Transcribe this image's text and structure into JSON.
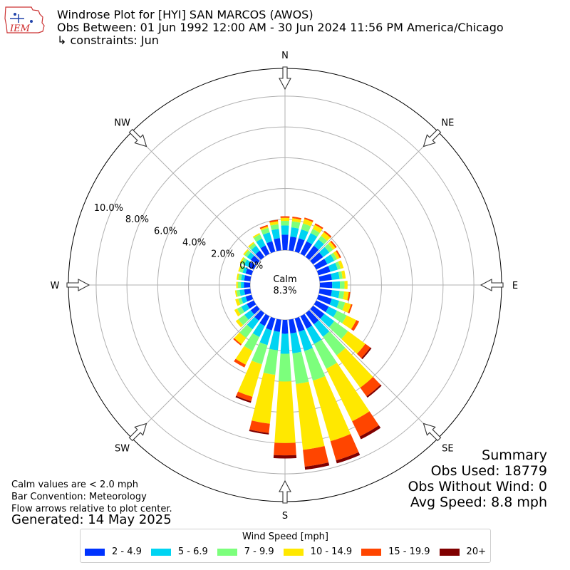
{
  "header": {
    "title": "Windrose Plot for [HYI] SAN MARCOS (AWOS)",
    "obs_between": "Obs Between: 01 Jun 1992 12:00 AM - 30 Jun 2024 11:56 PM America/Chicago",
    "constraints": "↳ constraints: Jun",
    "logo_text": "IEM"
  },
  "chart_data": {
    "type": "windrose",
    "title": "Windrose Plot for [HYI] SAN MARCOS (AWOS)",
    "directions_deg": [
      0,
      10,
      20,
      30,
      40,
      50,
      60,
      70,
      80,
      90,
      100,
      110,
      120,
      130,
      140,
      150,
      160,
      170,
      180,
      190,
      200,
      210,
      220,
      230,
      240,
      250,
      260,
      270,
      280,
      290,
      300,
      310,
      320,
      330,
      340,
      350
    ],
    "compass_labels": [
      {
        "label": "N",
        "deg": 0
      },
      {
        "label": "NE",
        "deg": 45
      },
      {
        "label": "E",
        "deg": 90
      },
      {
        "label": "SE",
        "deg": 135
      },
      {
        "label": "S",
        "deg": 180
      },
      {
        "label": "SW",
        "deg": 225
      },
      {
        "label": "W",
        "deg": 270
      },
      {
        "label": "NW",
        "deg": 315
      }
    ],
    "radial_unit": "%",
    "radial_ticks": [
      0,
      2,
      4,
      6,
      8,
      10
    ],
    "radial_tick_labels": [
      "0.0%",
      "2.0%",
      "4.0%",
      "6.0%",
      "8.0%",
      "10.0%"
    ],
    "rmax": 11.8,
    "calm_label": "Calm",
    "calm_value": "8.3%",
    "series": [
      {
        "name": "2 - 4.9",
        "color": "#0033ff",
        "values": [
          1.0,
          0.9,
          0.9,
          0.9,
          0.9,
          0.8,
          0.8,
          0.8,
          0.8,
          0.8,
          0.8,
          0.9,
          0.9,
          0.9,
          0.9,
          0.9,
          0.9,
          0.9,
          0.9,
          0.8,
          0.8,
          0.7,
          0.6,
          0.5,
          0.5,
          0.4,
          0.4,
          0.4,
          0.4,
          0.4,
          0.4,
          0.5,
          0.5,
          0.6,
          0.7,
          0.8
        ]
      },
      {
        "name": "5 - 6.9",
        "color": "#00d4f2",
        "values": [
          0.6,
          0.6,
          0.6,
          0.6,
          0.5,
          0.5,
          0.5,
          0.5,
          0.5,
          0.5,
          0.5,
          0.5,
          0.6,
          0.8,
          1.0,
          1.1,
          1.3,
          1.3,
          1.3,
          1.2,
          1.0,
          0.8,
          0.7,
          0.5,
          0.4,
          0.3,
          0.3,
          0.2,
          0.2,
          0.2,
          0.3,
          0.3,
          0.4,
          0.5,
          0.6,
          0.6
        ]
      },
      {
        "name": "7 - 9.9",
        "color": "#7cff7c",
        "values": [
          0.3,
          0.4,
          0.4,
          0.3,
          0.3,
          0.3,
          0.2,
          0.2,
          0.2,
          0.3,
          0.3,
          0.4,
          0.7,
          1.1,
          1.5,
          1.8,
          2.0,
          2.0,
          1.8,
          1.6,
          1.3,
          1.0,
          0.7,
          0.5,
          0.3,
          0.2,
          0.2,
          0.2,
          0.2,
          0.2,
          0.2,
          0.2,
          0.2,
          0.3,
          0.3,
          0.3
        ]
      },
      {
        "name": "10 - 14.9",
        "color": "#ffe800",
        "values": [
          0.2,
          0.2,
          0.3,
          0.3,
          0.3,
          0.2,
          0.2,
          0.2,
          0.2,
          0.2,
          0.3,
          0.4,
          0.7,
          1.4,
          2.6,
          3.8,
          4.1,
          4.3,
          4.0,
          3.2,
          2.2,
          1.0,
          0.5,
          0.2,
          0.2,
          0.2,
          0.1,
          0.1,
          0.1,
          0.1,
          0.1,
          0.1,
          0.1,
          0.1,
          0.1,
          0.2
        ]
      },
      {
        "name": "15 - 19.9",
        "color": "#ff4500",
        "values": [
          0.1,
          0.1,
          0.1,
          0.1,
          0.1,
          0.1,
          0.1,
          0.0,
          0.0,
          0.0,
          0.1,
          0.1,
          0.2,
          0.4,
          0.7,
          1.1,
          1.3,
          1.1,
          0.8,
          0.6,
          0.3,
          0.2,
          0.1,
          0.0,
          0.0,
          0.0,
          0.0,
          0.0,
          0.0,
          0.0,
          0.0,
          0.0,
          0.0,
          0.0,
          0.1,
          0.1
        ]
      },
      {
        "name": "20+",
        "color": "#800000",
        "values": [
          0.0,
          0.0,
          0.0,
          0.0,
          0.0,
          0.0,
          0.0,
          0.0,
          0.0,
          0.0,
          0.0,
          0.0,
          0.0,
          0.1,
          0.1,
          0.2,
          0.2,
          0.2,
          0.2,
          0.1,
          0.1,
          0.0,
          0.0,
          0.0,
          0.0,
          0.0,
          0.0,
          0.0,
          0.0,
          0.0,
          0.0,
          0.0,
          0.0,
          0.0,
          0.0,
          0.0
        ]
      }
    ]
  },
  "notes": {
    "calm": "Calm values are < 2.0 mph",
    "convention": "Bar Convention: Meteorology",
    "arrows": "Flow arrows relative to plot center.",
    "generated": "Generated: 14 May 2025"
  },
  "summary": {
    "heading": "Summary",
    "obs_used": "Obs Used: 18779",
    "obs_without_wind": "Obs Without Wind: 0",
    "avg_speed": "Avg Speed: 8.8 mph"
  },
  "legend": {
    "title": "Wind Speed [mph]",
    "items": [
      {
        "label": "2 - 4.9",
        "color": "#0033ff"
      },
      {
        "label": "5 - 6.9",
        "color": "#00d4f2"
      },
      {
        "label": "7 - 9.9",
        "color": "#7cff7c"
      },
      {
        "label": "10 - 14.9",
        "color": "#ffe800"
      },
      {
        "label": "15 - 19.9",
        "color": "#ff4500"
      },
      {
        "label": "20+",
        "color": "#800000"
      }
    ]
  }
}
